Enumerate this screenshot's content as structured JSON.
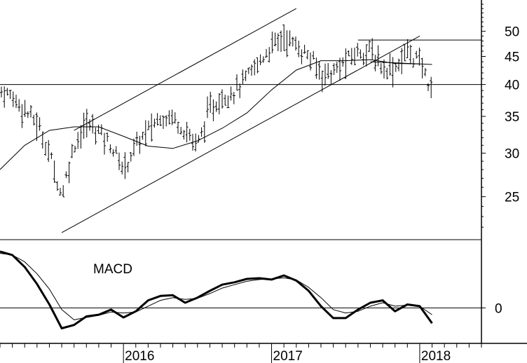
{
  "chart_data": [
    {
      "type": "ohlc",
      "panel": "price",
      "y_scale": "log",
      "ylim": [
        21,
        57
      ],
      "y_ticks": [
        25,
        30,
        35,
        40,
        45,
        50
      ],
      "x_ticks": [
        "2016",
        "2017",
        "2018"
      ],
      "x_range": [
        "2015-03",
        "2018-06"
      ],
      "horizontal_lines": [
        40,
        48
      ],
      "channel_upper": [
        {
          "x": "2015-09",
          "y": 33
        },
        {
          "x": "2017-03",
          "y": 55
        }
      ],
      "channel_lower": [
        {
          "x": "2015-08",
          "y": 21.5
        },
        {
          "x": "2018-01",
          "y": 49
        }
      ],
      "short_lines": [
        {
          "from": {
            "x": "2017-08",
            "y": 48.2
          },
          "to": {
            "x": "2018-06",
            "y": 48.2
          }
        },
        {
          "from": {
            "x": "2017-09",
            "y": 44
          },
          "to": {
            "x": "2018-02",
            "y": 43.5
          }
        }
      ],
      "moving_average": [
        {
          "x": "2015-03",
          "y": 28
        },
        {
          "x": "2015-05",
          "y": 31
        },
        {
          "x": "2015-07",
          "y": 33
        },
        {
          "x": "2015-09",
          "y": 33.5
        },
        {
          "x": "2015-11",
          "y": 33.5
        },
        {
          "x": "2016-01",
          "y": 32.2
        },
        {
          "x": "2016-03",
          "y": 30.9
        },
        {
          "x": "2016-05",
          "y": 30.6
        },
        {
          "x": "2016-07",
          "y": 31.6
        },
        {
          "x": "2016-09",
          "y": 33.3
        },
        {
          "x": "2016-11",
          "y": 35.5
        },
        {
          "x": "2017-01",
          "y": 39.1
        },
        {
          "x": "2017-03",
          "y": 42.5
        },
        {
          "x": "2017-05",
          "y": 44.2
        },
        {
          "x": "2017-07",
          "y": 44.2
        },
        {
          "x": "2017-09",
          "y": 44.4
        },
        {
          "x": "2017-11",
          "y": 43.7
        },
        {
          "x": "2018-01",
          "y": 43.6
        }
      ],
      "close_path": [
        {
          "x": "2015-03",
          "y": 39
        },
        {
          "x": "2015-04",
          "y": 38
        },
        {
          "x": "2015-05",
          "y": 36
        },
        {
          "x": "2015-06",
          "y": 34
        },
        {
          "x": "2015-07",
          "y": 30
        },
        {
          "x": "2015-08",
          "y": 25
        },
        {
          "x": "2015-09",
          "y": 31
        },
        {
          "x": "2015-10",
          "y": 34
        },
        {
          "x": "2015-11",
          "y": 33
        },
        {
          "x": "2015-12",
          "y": 31
        },
        {
          "x": "2016-01",
          "y": 28
        },
        {
          "x": "2016-02",
          "y": 31
        },
        {
          "x": "2016-03",
          "y": 33
        },
        {
          "x": "2016-04",
          "y": 35
        },
        {
          "x": "2016-05",
          "y": 35
        },
        {
          "x": "2016-06",
          "y": 33
        },
        {
          "x": "2016-07",
          "y": 31
        },
        {
          "x": "2016-08",
          "y": 36
        },
        {
          "x": "2016-09",
          "y": 38
        },
        {
          "x": "2016-10",
          "y": 39
        },
        {
          "x": "2016-11",
          "y": 41
        },
        {
          "x": "2016-12",
          "y": 44
        },
        {
          "x": "2017-01",
          "y": 47
        },
        {
          "x": "2017-02",
          "y": 49
        },
        {
          "x": "2017-03",
          "y": 47
        },
        {
          "x": "2017-04",
          "y": 45
        },
        {
          "x": "2017-05",
          "y": 42
        },
        {
          "x": "2017-06",
          "y": 42
        },
        {
          "x": "2017-07",
          "y": 44
        },
        {
          "x": "2017-08",
          "y": 46
        },
        {
          "x": "2017-09",
          "y": 46
        },
        {
          "x": "2017-10",
          "y": 43
        },
        {
          "x": "2017-11",
          "y": 43
        },
        {
          "x": "2017-12",
          "y": 46
        },
        {
          "x": "2018-01",
          "y": 44
        },
        {
          "x": "2018-02",
          "y": 39
        }
      ]
    },
    {
      "type": "line",
      "panel": "macd",
      "title": "MACD",
      "y_ticks": [
        0
      ],
      "zero_line": 0,
      "ylim": [
        -1.0,
        2.0
      ],
      "series": [
        {
          "role": "macd",
          "points": [
            {
              "x": "2015-03",
              "y": 1.65
            },
            {
              "x": "2015-04",
              "y": 1.55
            },
            {
              "x": "2015-05",
              "y": 1.2
            },
            {
              "x": "2015-06",
              "y": 0.7
            },
            {
              "x": "2015-07",
              "y": 0.1
            },
            {
              "x": "2015-08",
              "y": -0.6
            },
            {
              "x": "2015-09",
              "y": -0.5
            },
            {
              "x": "2015-10",
              "y": -0.25
            },
            {
              "x": "2015-11",
              "y": -0.2
            },
            {
              "x": "2015-12",
              "y": -0.05
            },
            {
              "x": "2016-01",
              "y": -0.28
            },
            {
              "x": "2016-02",
              "y": -0.1
            },
            {
              "x": "2016-03",
              "y": 0.22
            },
            {
              "x": "2016-04",
              "y": 0.35
            },
            {
              "x": "2016-05",
              "y": 0.37
            },
            {
              "x": "2016-06",
              "y": 0.15
            },
            {
              "x": "2016-07",
              "y": 0.3
            },
            {
              "x": "2016-08",
              "y": 0.5
            },
            {
              "x": "2016-09",
              "y": 0.68
            },
            {
              "x": "2016-10",
              "y": 0.75
            },
            {
              "x": "2016-11",
              "y": 0.85
            },
            {
              "x": "2016-12",
              "y": 0.87
            },
            {
              "x": "2017-01",
              "y": 0.83
            },
            {
              "x": "2017-02",
              "y": 0.95
            },
            {
              "x": "2017-03",
              "y": 0.8
            },
            {
              "x": "2017-04",
              "y": 0.5
            },
            {
              "x": "2017-05",
              "y": 0.05
            },
            {
              "x": "2017-06",
              "y": -0.3
            },
            {
              "x": "2017-07",
              "y": -0.3
            },
            {
              "x": "2017-08",
              "y": -0.05
            },
            {
              "x": "2017-09",
              "y": 0.15
            },
            {
              "x": "2017-10",
              "y": 0.22
            },
            {
              "x": "2017-11",
              "y": -0.1
            },
            {
              "x": "2017-12",
              "y": 0.1
            },
            {
              "x": "2018-01",
              "y": 0.05
            },
            {
              "x": "2018-02",
              "y": -0.45
            }
          ]
        },
        {
          "role": "signal",
          "points": [
            {
              "x": "2015-03",
              "y": 1.6
            },
            {
              "x": "2015-04",
              "y": 1.55
            },
            {
              "x": "2015-05",
              "y": 1.35
            },
            {
              "x": "2015-06",
              "y": 1.0
            },
            {
              "x": "2015-07",
              "y": 0.55
            },
            {
              "x": "2015-08",
              "y": -0.05
            },
            {
              "x": "2015-09",
              "y": -0.35
            },
            {
              "x": "2015-10",
              "y": -0.28
            },
            {
              "x": "2015-11",
              "y": -0.22
            },
            {
              "x": "2015-12",
              "y": -0.12
            },
            {
              "x": "2016-01",
              "y": -0.15
            },
            {
              "x": "2016-02",
              "y": -0.12
            },
            {
              "x": "2016-03",
              "y": 0.05
            },
            {
              "x": "2016-04",
              "y": 0.22
            },
            {
              "x": "2016-05",
              "y": 0.3
            },
            {
              "x": "2016-06",
              "y": 0.25
            },
            {
              "x": "2016-07",
              "y": 0.28
            },
            {
              "x": "2016-08",
              "y": 0.42
            },
            {
              "x": "2016-09",
              "y": 0.58
            },
            {
              "x": "2016-10",
              "y": 0.68
            },
            {
              "x": "2016-11",
              "y": 0.78
            },
            {
              "x": "2016-12",
              "y": 0.83
            },
            {
              "x": "2017-01",
              "y": 0.85
            },
            {
              "x": "2017-02",
              "y": 0.88
            },
            {
              "x": "2017-03",
              "y": 0.82
            },
            {
              "x": "2017-04",
              "y": 0.6
            },
            {
              "x": "2017-05",
              "y": 0.3
            },
            {
              "x": "2017-06",
              "y": -0.05
            },
            {
              "x": "2017-07",
              "y": -0.15
            },
            {
              "x": "2017-08",
              "y": -0.1
            },
            {
              "x": "2017-09",
              "y": 0.05
            },
            {
              "x": "2017-10",
              "y": 0.15
            },
            {
              "x": "2017-11",
              "y": 0.05
            },
            {
              "x": "2017-12",
              "y": 0.08
            },
            {
              "x": "2018-01",
              "y": 0.05
            },
            {
              "x": "2018-02",
              "y": -0.2
            }
          ]
        }
      ]
    }
  ]
}
